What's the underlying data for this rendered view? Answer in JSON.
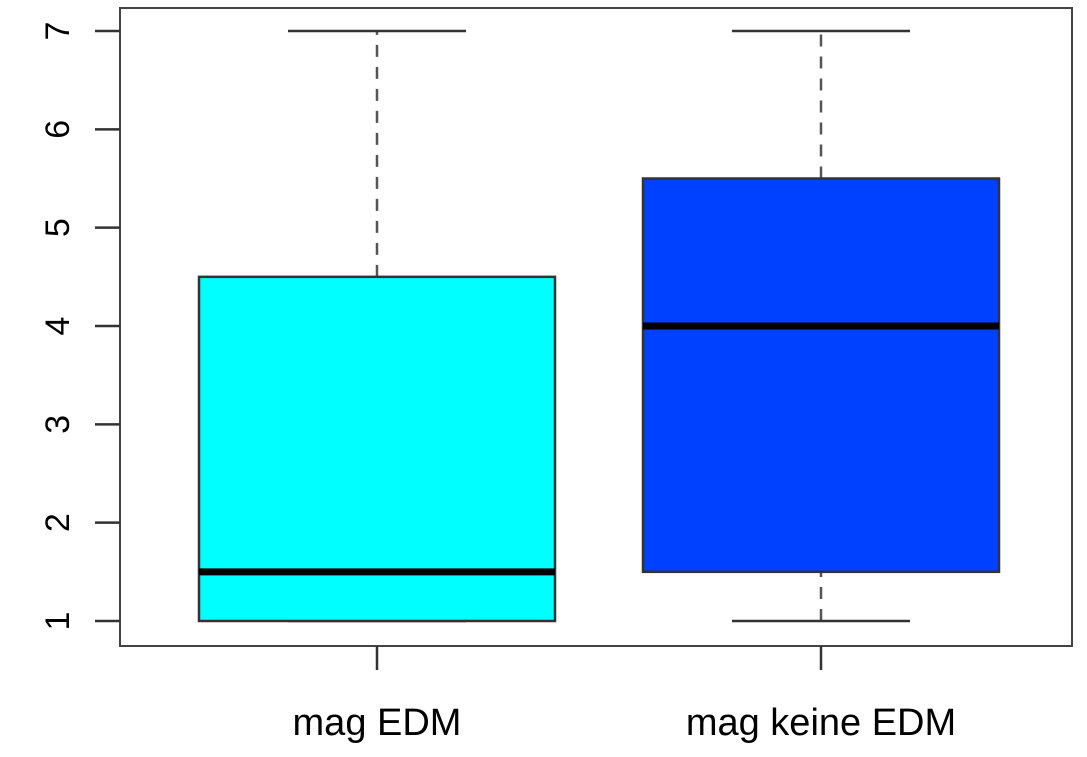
{
  "chart_data": {
    "type": "boxplot",
    "title": "",
    "xlabel": "",
    "ylabel": "",
    "ylim": [
      0.75,
      7.25
    ],
    "yticks": [
      1,
      2,
      3,
      4,
      5,
      6,
      7
    ],
    "ytick_labels": [
      "1",
      "2",
      "3",
      "4",
      "5",
      "6",
      "7"
    ],
    "grid": false,
    "legend": "none",
    "categories": [
      "mag EDM",
      "mag keine EDM"
    ],
    "boxes": [
      {
        "label": "mag EDM",
        "min": 1,
        "q1": 1,
        "median": 1.5,
        "q3": 4.5,
        "max": 7,
        "color": "#00FFFF"
      },
      {
        "label": "mag keine EDM",
        "min": 1,
        "q1": 1.5,
        "median": 4,
        "q3": 5.5,
        "max": 7,
        "color": "#0040FF"
      }
    ]
  }
}
